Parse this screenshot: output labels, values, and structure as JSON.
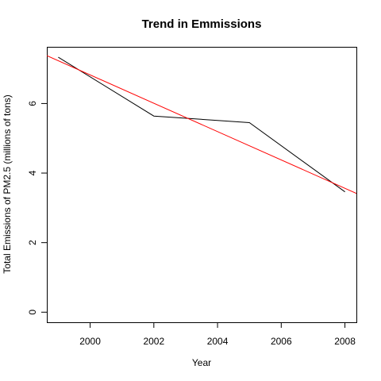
{
  "chart_data": {
    "type": "line",
    "title": "Trend in Emmissions",
    "xlabel": "Year",
    "ylabel": "Total Emissions of PM2.5 (millions of tons)",
    "xlim": [
      1998.64,
      2008.36
    ],
    "ylim": [
      -0.29,
      7.63
    ],
    "x_ticks": [
      2000,
      2002,
      2004,
      2006,
      2008
    ],
    "y_ticks": [
      0,
      2,
      4,
      6
    ],
    "grid": false,
    "series": [
      {
        "color": "#000000",
        "x": [
          1999,
          2002,
          2005,
          2008
        ],
        "y": [
          7.33,
          5.64,
          5.45,
          3.46
        ]
      }
    ],
    "trend_line": {
      "color": "#ff0000",
      "intercept_at_1999": 7.23,
      "slope_per_year": -0.4075
    }
  }
}
